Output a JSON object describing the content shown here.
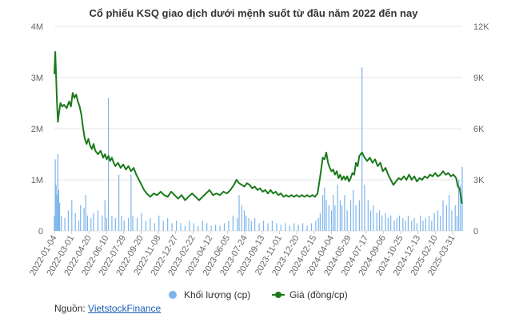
{
  "chart_data": {
    "type": "bar+line",
    "title": "Cổ phiếu KSQ giao dịch dưới mệnh suốt từ đầu năm 2022 đến nay",
    "left_axis": {
      "ticks": [
        "0",
        "1M",
        "2M",
        "3M",
        "4M"
      ],
      "values": [
        0,
        1000000,
        2000000,
        3000000,
        4000000
      ],
      "range": [
        0,
        4000000
      ]
    },
    "right_axis": {
      "ticks": [
        "0",
        "3K",
        "6K",
        "9K",
        "12K"
      ],
      "values": [
        0,
        3000,
        6000,
        9000,
        12000
      ],
      "range": [
        0,
        12000
      ]
    },
    "x_tick_labels": [
      "2022-01-04",
      "2022-03-01",
      "2022-04-20",
      "2022-06-10",
      "2022-07-29",
      "2022-09-20",
      "2022-11-08",
      "2022-12-27",
      "2023-02-22",
      "2023-04-12",
      "2023-06-05",
      "2023-07-24",
      "2023-09-13",
      "2023-11-01",
      "2023-12-20",
      "2024-02-15",
      "2024-04-04",
      "2024-05-29",
      "2024-07-17",
      "2024-09-06",
      "2024-10-25",
      "2024-12-13",
      "2025-02-10",
      "2025-03-31"
    ],
    "series": [
      {
        "name": "Khối lượng (cp)",
        "kind": "bar",
        "axis": "left",
        "color": "#7cb5ec",
        "points": [
          [
            0,
            300000
          ],
          [
            1,
            1400000
          ],
          [
            2,
            900000
          ],
          [
            3,
            700000
          ],
          [
            4,
            1500000
          ],
          [
            5,
            800000
          ],
          [
            6,
            550000
          ],
          [
            8,
            300000
          ],
          [
            12,
            250000
          ],
          [
            16,
            400000
          ],
          [
            20,
            600000
          ],
          [
            24,
            350000
          ],
          [
            28,
            200000
          ],
          [
            30,
            500000
          ],
          [
            34,
            450000
          ],
          [
            36,
            700000
          ],
          [
            38,
            300000
          ],
          [
            42,
            250000
          ],
          [
            45,
            350000
          ],
          [
            50,
            400000
          ],
          [
            55,
            300000
          ],
          [
            58,
            600000
          ],
          [
            60,
            250000
          ],
          [
            62,
            2600000
          ],
          [
            66,
            300000
          ],
          [
            70,
            250000
          ],
          [
            74,
            1100000
          ],
          [
            77,
            300000
          ],
          [
            80,
            200000
          ],
          [
            85,
            250000
          ],
          [
            88,
            1100000
          ],
          [
            90,
            300000
          ],
          [
            95,
            250000
          ],
          [
            100,
            350000
          ],
          [
            105,
            200000
          ],
          [
            110,
            250000
          ],
          [
            115,
            150000
          ],
          [
            120,
            300000
          ],
          [
            125,
            200000
          ],
          [
            130,
            250000
          ],
          [
            135,
            150000
          ],
          [
            140,
            200000
          ],
          [
            145,
            150000
          ],
          [
            150,
            100000
          ],
          [
            155,
            200000
          ],
          [
            160,
            150000
          ],
          [
            165,
            100000
          ],
          [
            170,
            200000
          ],
          [
            175,
            150000
          ],
          [
            180,
            100000
          ],
          [
            185,
            120000
          ],
          [
            190,
            100000
          ],
          [
            195,
            150000
          ],
          [
            200,
            200000
          ],
          [
            205,
            300000
          ],
          [
            210,
            250000
          ],
          [
            212,
            700000
          ],
          [
            215,
            500000
          ],
          [
            218,
            400000
          ],
          [
            220,
            300000
          ],
          [
            223,
            250000
          ],
          [
            226,
            200000
          ],
          [
            230,
            250000
          ],
          [
            235,
            150000
          ],
          [
            240,
            200000
          ],
          [
            245,
            150000
          ],
          [
            250,
            200000
          ],
          [
            255,
            150000
          ],
          [
            260,
            120000
          ],
          [
            265,
            150000
          ],
          [
            270,
            100000
          ],
          [
            275,
            150000
          ],
          [
            280,
            120000
          ],
          [
            285,
            150000
          ],
          [
            290,
            100000
          ],
          [
            295,
            150000
          ],
          [
            300,
            200000
          ],
          [
            303,
            250000
          ],
          [
            305,
            350000
          ],
          [
            308,
            700000
          ],
          [
            310,
            850000
          ],
          [
            312,
            600000
          ],
          [
            315,
            500000
          ],
          [
            318,
            400000
          ],
          [
            320,
            700000
          ],
          [
            322,
            500000
          ],
          [
            325,
            900000
          ],
          [
            328,
            600000
          ],
          [
            330,
            500000
          ],
          [
            333,
            700000
          ],
          [
            336,
            400000
          ],
          [
            340,
            600000
          ],
          [
            343,
            800000
          ],
          [
            346,
            500000
          ],
          [
            350,
            600000
          ],
          [
            353,
            3200000
          ],
          [
            356,
            900000
          ],
          [
            360,
            600000
          ],
          [
            363,
            400000
          ],
          [
            366,
            500000
          ],
          [
            370,
            350000
          ],
          [
            373,
            400000
          ],
          [
            376,
            300000
          ],
          [
            380,
            350000
          ],
          [
            383,
            250000
          ],
          [
            386,
            300000
          ],
          [
            390,
            200000
          ],
          [
            393,
            250000
          ],
          [
            396,
            300000
          ],
          [
            400,
            250000
          ],
          [
            403,
            200000
          ],
          [
            406,
            300000
          ],
          [
            410,
            200000
          ],
          [
            413,
            250000
          ],
          [
            416,
            150000
          ],
          [
            420,
            300000
          ],
          [
            423,
            200000
          ],
          [
            426,
            250000
          ],
          [
            430,
            300000
          ],
          [
            433,
            200000
          ],
          [
            436,
            350000
          ],
          [
            440,
            400000
          ],
          [
            443,
            300000
          ],
          [
            446,
            600000
          ],
          [
            450,
            500000
          ],
          [
            453,
            700000
          ],
          [
            456,
            400000
          ],
          [
            460,
            500000
          ],
          [
            462,
            300000
          ],
          [
            464,
            1000000
          ],
          [
            466,
            900000
          ],
          [
            468,
            1250000
          ]
        ]
      },
      {
        "name": "Giá (đồng/cp)",
        "kind": "line",
        "axis": "right",
        "color": "#1a7a1a",
        "points": [
          [
            0,
            9200
          ],
          [
            1,
            10500
          ],
          [
            2,
            9000
          ],
          [
            3,
            7500
          ],
          [
            4,
            6400
          ],
          [
            5,
            6800
          ],
          [
            7,
            7500
          ],
          [
            9,
            7300
          ],
          [
            11,
            7400
          ],
          [
            14,
            7200
          ],
          [
            17,
            7600
          ],
          [
            19,
            7300
          ],
          [
            21,
            8100
          ],
          [
            23,
            7800
          ],
          [
            25,
            8000
          ],
          [
            27,
            7600
          ],
          [
            29,
            7300
          ],
          [
            31,
            6800
          ],
          [
            33,
            6000
          ],
          [
            35,
            5400
          ],
          [
            37,
            5100
          ],
          [
            39,
            5400
          ],
          [
            41,
            5000
          ],
          [
            43,
            4800
          ],
          [
            45,
            5100
          ],
          [
            47,
            4700
          ],
          [
            50,
            4500
          ],
          [
            53,
            4700
          ],
          [
            56,
            4300
          ],
          [
            58,
            4500
          ],
          [
            60,
            4200
          ],
          [
            62,
            4400
          ],
          [
            64,
            4100
          ],
          [
            66,
            4300
          ],
          [
            68,
            4000
          ],
          [
            70,
            3800
          ],
          [
            73,
            4000
          ],
          [
            76,
            3700
          ],
          [
            79,
            3900
          ],
          [
            82,
            3600
          ],
          [
            85,
            3800
          ],
          [
            88,
            3500
          ],
          [
            91,
            3700
          ],
          [
            94,
            3300
          ],
          [
            97,
            3000
          ],
          [
            100,
            2700
          ],
          [
            103,
            2400
          ],
          [
            106,
            2200
          ],
          [
            110,
            2000
          ],
          [
            114,
            2200
          ],
          [
            118,
            2100
          ],
          [
            122,
            2300
          ],
          [
            126,
            2100
          ],
          [
            130,
            2000
          ],
          [
            134,
            2300
          ],
          [
            138,
            2100
          ],
          [
            142,
            1900
          ],
          [
            146,
            2100
          ],
          [
            150,
            1800
          ],
          [
            154,
            2000
          ],
          [
            158,
            2200
          ],
          [
            162,
            2000
          ],
          [
            166,
            1800
          ],
          [
            170,
            2000
          ],
          [
            174,
            2200
          ],
          [
            178,
            2400
          ],
          [
            182,
            2100
          ],
          [
            186,
            2200
          ],
          [
            190,
            2100
          ],
          [
            194,
            2300
          ],
          [
            198,
            2200
          ],
          [
            202,
            2400
          ],
          [
            206,
            2700
          ],
          [
            209,
            3000
          ],
          [
            212,
            2800
          ],
          [
            215,
            2700
          ],
          [
            218,
            2600
          ],
          [
            221,
            2800
          ],
          [
            224,
            2700
          ],
          [
            227,
            2500
          ],
          [
            230,
            2600
          ],
          [
            233,
            2400
          ],
          [
            236,
            2500
          ],
          [
            239,
            2300
          ],
          [
            242,
            2400
          ],
          [
            245,
            2200
          ],
          [
            248,
            2400
          ],
          [
            251,
            2200
          ],
          [
            254,
            2300
          ],
          [
            257,
            2100
          ],
          [
            260,
            2200
          ],
          [
            263,
            2000
          ],
          [
            266,
            2100
          ],
          [
            269,
            2000
          ],
          [
            272,
            2100
          ],
          [
            275,
            2000
          ],
          [
            278,
            2100
          ],
          [
            281,
            2000
          ],
          [
            284,
            2100
          ],
          [
            287,
            2000
          ],
          [
            290,
            2100
          ],
          [
            293,
            2000
          ],
          [
            296,
            2100
          ],
          [
            299,
            2000
          ],
          [
            302,
            2200
          ],
          [
            305,
            3200
          ],
          [
            308,
            4300
          ],
          [
            310,
            4200
          ],
          [
            312,
            4600
          ],
          [
            314,
            4000
          ],
          [
            316,
            3700
          ],
          [
            318,
            3500
          ],
          [
            320,
            3600
          ],
          [
            322,
            3300
          ],
          [
            324,
            3500
          ],
          [
            326,
            3100
          ],
          [
            328,
            3300
          ],
          [
            330,
            3000
          ],
          [
            332,
            3200
          ],
          [
            334,
            3000
          ],
          [
            336,
            3200
          ],
          [
            338,
            2900
          ],
          [
            340,
            3100
          ],
          [
            342,
            3400
          ],
          [
            344,
            3300
          ],
          [
            346,
            4000
          ],
          [
            348,
            3800
          ],
          [
            350,
            4400
          ],
          [
            353,
            4600
          ],
          [
            356,
            4300
          ],
          [
            359,
            4100
          ],
          [
            362,
            4300
          ],
          [
            365,
            4000
          ],
          [
            368,
            4200
          ],
          [
            371,
            3800
          ],
          [
            374,
            4000
          ],
          [
            377,
            3500
          ],
          [
            380,
            3700
          ],
          [
            383,
            3300
          ],
          [
            386,
            3000
          ],
          [
            389,
            2700
          ],
          [
            392,
            2900
          ],
          [
            395,
            3100
          ],
          [
            398,
            3000
          ],
          [
            401,
            3200
          ],
          [
            404,
            3000
          ],
          [
            407,
            3300
          ],
          [
            410,
            3000
          ],
          [
            413,
            3200
          ],
          [
            416,
            2900
          ],
          [
            419,
            3100
          ],
          [
            422,
            3000
          ],
          [
            425,
            3200
          ],
          [
            428,
            3100
          ],
          [
            431,
            3300
          ],
          [
            434,
            3200
          ],
          [
            437,
            3400
          ],
          [
            440,
            3200
          ],
          [
            443,
            3300
          ],
          [
            446,
            3500
          ],
          [
            449,
            3300
          ],
          [
            452,
            3400
          ],
          [
            455,
            3200
          ],
          [
            458,
            3300
          ],
          [
            461,
            3100
          ],
          [
            463,
            2600
          ],
          [
            465,
            2500
          ],
          [
            466,
            2200
          ],
          [
            467,
            1800
          ],
          [
            468,
            1600
          ]
        ]
      }
    ],
    "x_index_range": [
      0,
      468
    ],
    "legend_position": "bottom-center",
    "grid": "horizontal"
  },
  "source": {
    "prefix": "Nguồn: ",
    "link_text": "VietstockFinance"
  }
}
